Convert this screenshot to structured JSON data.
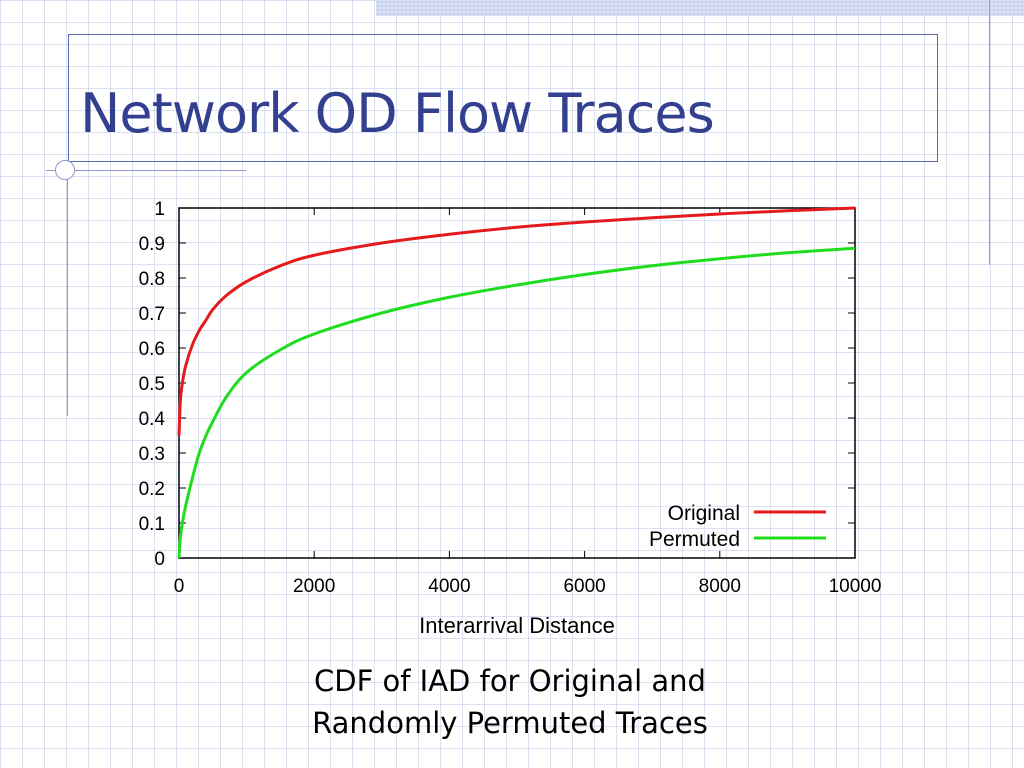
{
  "slide": {
    "title": "Network OD Flow Traces",
    "caption_line1": "CDF of IAD for Original and",
    "caption_line2": "Randomly Permuted Traces"
  },
  "chart_data": {
    "type": "line",
    "title": "",
    "xlabel": "Interarrival Distance",
    "ylabel": "",
    "xlim": [
      0,
      10000
    ],
    "ylim": [
      0,
      1
    ],
    "xticks": [
      "0",
      "2000",
      "4000",
      "6000",
      "8000",
      "10000"
    ],
    "yticks": [
      "0",
      "0.1",
      "0.2",
      "0.3",
      "0.4",
      "0.5",
      "0.6",
      "0.7",
      "0.8",
      "0.9",
      "1"
    ],
    "grid": false,
    "legend_position": "bottom-right",
    "series": [
      {
        "name": "Original",
        "color": "#e41a1c",
        "x": [
          0,
          20,
          50,
          100,
          200,
          300,
          400,
          500,
          700,
          1000,
          1500,
          2000,
          3000,
          4000,
          5000,
          6000,
          7000,
          8000,
          9000,
          10000
        ],
        "y": [
          0.35,
          0.45,
          0.5,
          0.55,
          0.61,
          0.65,
          0.68,
          0.71,
          0.75,
          0.79,
          0.835,
          0.865,
          0.9,
          0.925,
          0.945,
          0.96,
          0.972,
          0.983,
          0.992,
          1.0
        ]
      },
      {
        "name": "Permuted",
        "color": "#1fdc1f",
        "x": [
          0,
          20,
          50,
          100,
          200,
          300,
          400,
          500,
          700,
          1000,
          1500,
          2000,
          3000,
          4000,
          5000,
          6000,
          7000,
          8000,
          9000,
          10000
        ],
        "y": [
          0.0,
          0.06,
          0.1,
          0.15,
          0.23,
          0.3,
          0.35,
          0.39,
          0.46,
          0.53,
          0.595,
          0.64,
          0.7,
          0.745,
          0.78,
          0.81,
          0.835,
          0.855,
          0.872,
          0.885
        ]
      }
    ]
  }
}
